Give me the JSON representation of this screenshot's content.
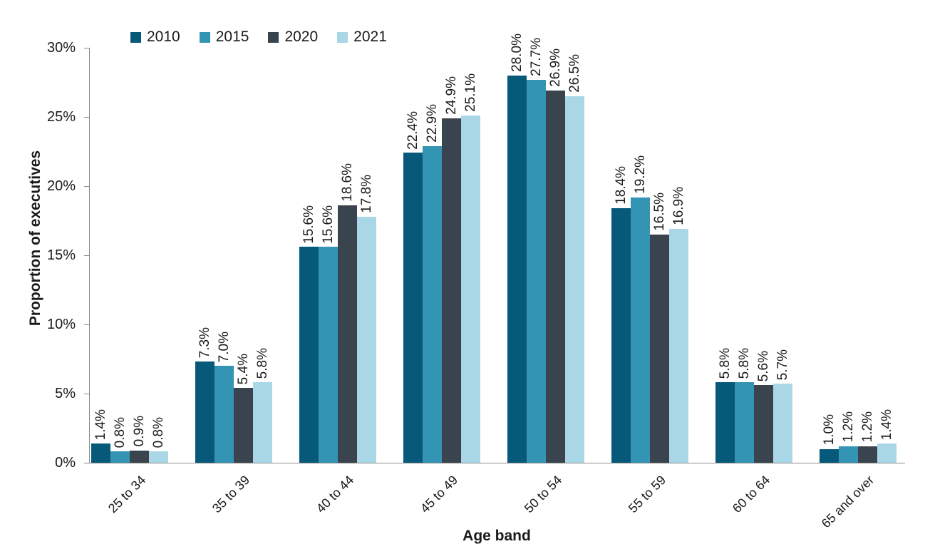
{
  "chart_data": {
    "type": "bar",
    "title": "",
    "xlabel": "Age band",
    "ylabel": "Proportion of executives",
    "ylim": [
      0,
      30
    ],
    "ytick_step": 5,
    "ytick_labels": [
      "0%",
      "5%",
      "10%",
      "15%",
      "20%",
      "25%",
      "30%"
    ],
    "categories": [
      "25 to 34",
      "35 to 39",
      "40 to 44",
      "45 to 49",
      "50 to 54",
      "55 to 59",
      "60 to 64",
      "65 and over"
    ],
    "series": [
      {
        "name": "2010",
        "color": "#07597a",
        "values": [
          1.4,
          7.3,
          15.6,
          22.4,
          28.0,
          18.4,
          5.8,
          1.0
        ]
      },
      {
        "name": "2015",
        "color": "#3494b4",
        "values": [
          0.8,
          7.0,
          15.6,
          22.9,
          27.7,
          19.2,
          5.8,
          1.2
        ]
      },
      {
        "name": "2020",
        "color": "#3a444e",
        "values": [
          0.9,
          5.4,
          18.6,
          24.9,
          26.9,
          16.5,
          5.6,
          1.2
        ]
      },
      {
        "name": "2021",
        "color": "#a9d7e6",
        "values": [
          0.8,
          5.8,
          17.8,
          25.1,
          26.5,
          16.9,
          5.7,
          1.4
        ]
      }
    ],
    "data_label_suffix": "%",
    "legend_position": "top",
    "grid": false
  },
  "colors": {
    "axis_line": "#8c8c8c",
    "text": "#1a1a1a"
  }
}
